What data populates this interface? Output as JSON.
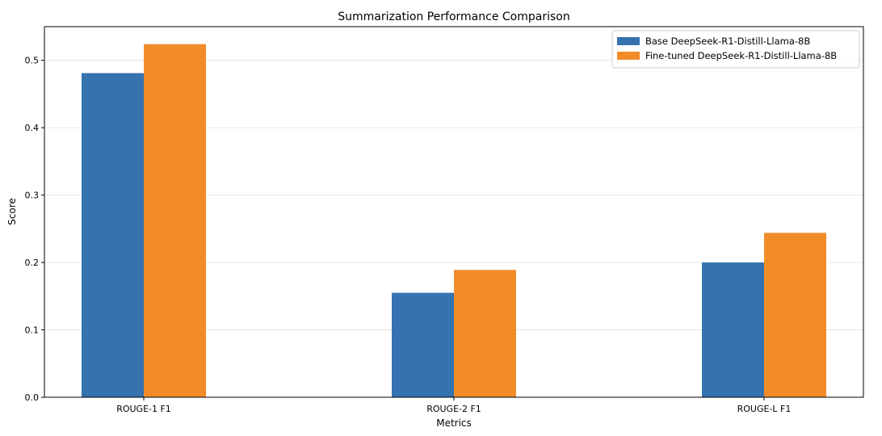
{
  "chart_data": {
    "type": "bar",
    "title": "Summarization Performance Comparison",
    "xlabel": "Metrics",
    "ylabel": "Score",
    "categories": [
      "ROUGE-1 F1",
      "ROUGE-2 F1",
      "ROUGE-L F1"
    ],
    "series": [
      {
        "name": "Base DeepSeek-R1-Distill-Llama-8B",
        "values": [
          0.481,
          0.155,
          0.2
        ],
        "color": "#3572b0"
      },
      {
        "name": "Fine-tuned DeepSeek-R1-Distill-Llama-8B",
        "values": [
          0.524,
          0.189,
          0.244
        ],
        "color": "#f28c28"
      }
    ],
    "ylim": [
      0,
      0.55
    ],
    "yticks": [
      "0.0",
      "0.1",
      "0.2",
      "0.3",
      "0.4",
      "0.5"
    ],
    "grid": true,
    "legend_position": "top-right"
  }
}
